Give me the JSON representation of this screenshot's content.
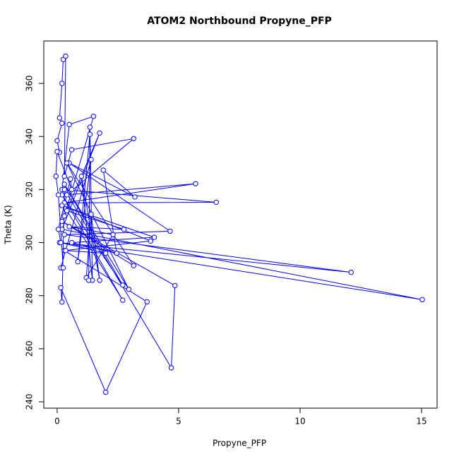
{
  "chart_data": {
    "type": "line",
    "title": "ATOM2 Northbound Propyne_PFP",
    "x_label": "Propyne_PFP",
    "y_label": "Theta (K)",
    "color": "#0000ff",
    "x": [
      0.1,
      0.0,
      0.2,
      0.1,
      0.2,
      0.25,
      0.35,
      0.3,
      0.6,
      3.15,
      0.4,
      5.7,
      0.3,
      6.55,
      0.2,
      0.5,
      1.5,
      0.3,
      1.75,
      0.2,
      15.03,
      0.1,
      12.1,
      0.3,
      4.65,
      0.5,
      3.2,
      1.9,
      2.45,
      0.6,
      4.0,
      0.2,
      3.85,
      0.3,
      3.7,
      2.0,
      0.15,
      0.2,
      0.3,
      4.7,
      4.85,
      0.2,
      3.15,
      0.4,
      2.95,
      0.3,
      2.7,
      0.2,
      2.7,
      0.4,
      2.75,
      0.5,
      2.3,
      1.2,
      1.4,
      1.75,
      1.0,
      1.45,
      1.35,
      1.3,
      1.35,
      0.85,
      1.4,
      0.15,
      0.25,
      0.05,
      -0.05,
      0.0,
      0.6,
      0.55,
      0.05,
      0.15,
      2.0,
      0.35
    ],
    "values": [
      334,
      338.4,
      345,
      347,
      360,
      369,
      370.3,
      325,
      335,
      339.2,
      318,
      322.2,
      315,
      315.2,
      320,
      344.5,
      347.6,
      310,
      341.3,
      305,
      278.5,
      300,
      288.8,
      303,
      304.3,
      330,
      317.2,
      327.3,
      296,
      300,
      302,
      314,
      300.6,
      297,
      277.7,
      243.6,
      283,
      277.6,
      320,
      252.8,
      283.8,
      308,
      291.3,
      330,
      282.4,
      322,
      284,
      318,
      278.3,
      312,
      305,
      306,
      303,
      286.8,
      310.7,
      285.8,
      325,
      285.8,
      343.5,
      285.8,
      340.8,
      292.8,
      331.3,
      290.5,
      290.5,
      318,
      325,
      334.3,
      320,
      324,
      305,
      300,
      296,
      297
    ],
    "xlim": [
      -0.55,
      15.64
    ],
    "ylim": [
      237.6,
      376
    ],
    "xticks": [
      0,
      5,
      10,
      15
    ],
    "yticks": [
      240,
      260,
      280,
      300,
      320,
      340,
      360
    ]
  }
}
